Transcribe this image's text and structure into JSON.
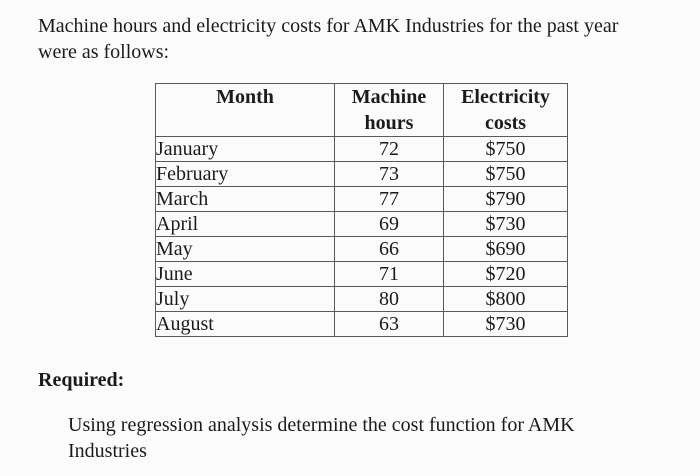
{
  "document": {
    "intro": {
      "lines": [
        "Machine hours and electricity costs for AMK Industries for the past year",
        "were as follows:"
      ]
    },
    "table": {
      "headers": [
        "Month",
        "Machine hours",
        "Electricity costs"
      ],
      "rows": [
        {
          "month": "January",
          "machine_hours": "72",
          "electricity_cost": "$750"
        },
        {
          "month": "February",
          "machine_hours": "73",
          "electricity_cost": "$750"
        },
        {
          "month": "March",
          "machine_hours": "77",
          "electricity_cost": "$790"
        },
        {
          "month": "April",
          "machine_hours": "69",
          "electricity_cost": "$730"
        },
        {
          "month": "May",
          "machine_hours": "66",
          "electricity_cost": "$690"
        },
        {
          "month": "June",
          "machine_hours": "71",
          "electricity_cost": "$720"
        },
        {
          "month": "July",
          "machine_hours": "80",
          "electricity_cost": "$800"
        },
        {
          "month": "August",
          "machine_hours": "63",
          "electricity_cost": "$730"
        }
      ]
    },
    "required_label": "Required:",
    "task": {
      "lines": [
        "Using regression analysis determine the cost function for AMK",
        "Industries"
      ]
    }
  },
  "chart_data": {
    "type": "table",
    "title": "Machine hours and electricity costs for AMK Industries",
    "columns": [
      "Month",
      "Machine hours",
      "Electricity costs"
    ],
    "months": [
      "January",
      "February",
      "March",
      "April",
      "May",
      "June",
      "July",
      "August"
    ],
    "machine_hours": [
      72,
      73,
      77,
      69,
      66,
      71,
      80,
      63
    ],
    "electricity_costs": [
      750,
      750,
      790,
      730,
      690,
      720,
      800,
      730
    ]
  },
  "colors": {
    "background": "#fbfbfb",
    "text": "#1b1b1b",
    "table_border": "#5a5a5a"
  }
}
